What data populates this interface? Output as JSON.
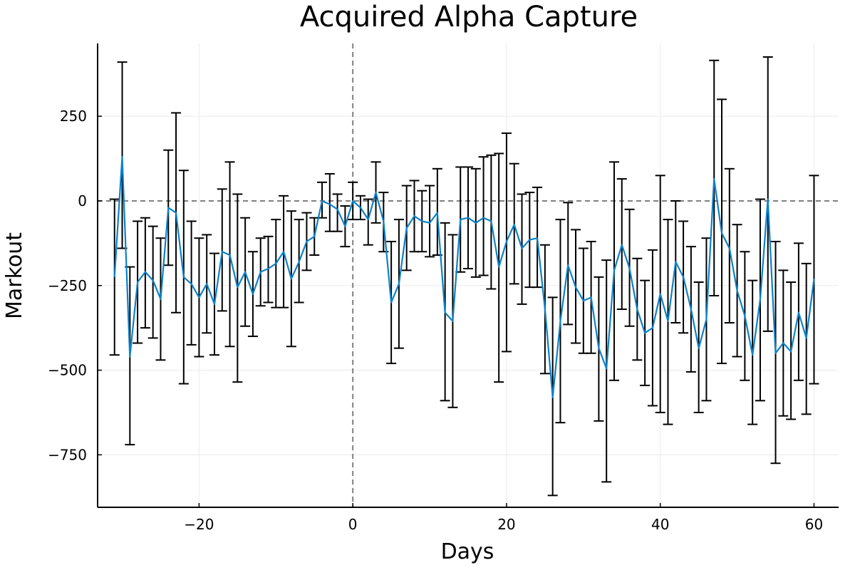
{
  "chart_data": {
    "type": "line",
    "title": "Acquired Alpha Capture",
    "xlabel": "Days",
    "ylabel": "Markout",
    "xlim": [
      -33.2,
      63.2
    ],
    "ylim": [
      -905,
      465
    ],
    "xticks": [
      -20,
      0,
      20,
      40,
      60
    ],
    "yticks": [
      250,
      0,
      -250,
      -500,
      -750
    ],
    "xtick_labels": [
      "−20",
      "0",
      "20",
      "40",
      "60"
    ],
    "ytick_labels": [
      "250",
      "0",
      "−250",
      "−500",
      "−750"
    ],
    "grid": true,
    "legend": "none",
    "reference_lines": {
      "x": 0,
      "y": 0
    },
    "colors": {
      "line": "#0c82c9",
      "errorbar": "#000000",
      "reference": "#808080",
      "grid": "#ebebeb"
    },
    "series": [
      {
        "x": [
          -31,
          -30,
          -29,
          -28,
          -27,
          -26,
          -25,
          -24,
          -23,
          -22,
          -21,
          -20,
          -19,
          -18,
          -17,
          -16,
          -15,
          -14,
          -13,
          -12,
          -11,
          -10,
          -9,
          -8,
          -7,
          -6,
          -5,
          -4,
          -3,
          -2,
          -1,
          0,
          1,
          2,
          3,
          4,
          5,
          6,
          7,
          8,
          9,
          10,
          11,
          12,
          13,
          14,
          15,
          16,
          17,
          18,
          19,
          20,
          21,
          22,
          23,
          24,
          25,
          26,
          27,
          28,
          29,
          30,
          31,
          32,
          33,
          34,
          35,
          36,
          37,
          38,
          39,
          40,
          41,
          42,
          43,
          44,
          45,
          46,
          47,
          48,
          49,
          50,
          51,
          52,
          53,
          54,
          55,
          56,
          57,
          58,
          59,
          60
        ],
        "values": [
          -225,
          130,
          -460,
          -240,
          -210,
          -235,
          -290,
          -20,
          -35,
          -225,
          -245,
          -285,
          -245,
          -305,
          -150,
          -160,
          -255,
          -210,
          -275,
          -210,
          -200,
          -185,
          -150,
          -230,
          -180,
          -120,
          -105,
          0,
          -10,
          -25,
          -75,
          0,
          -20,
          -55,
          25,
          -60,
          -300,
          -245,
          -80,
          -45,
          -60,
          -65,
          -35,
          -330,
          -355,
          -55,
          -50,
          -65,
          -50,
          -60,
          -195,
          -120,
          -70,
          -140,
          -115,
          -110,
          -320,
          -580,
          -355,
          -190,
          -255,
          -295,
          -285,
          -435,
          -495,
          -205,
          -130,
          -200,
          -320,
          -390,
          -375,
          -275,
          -355,
          -180,
          -225,
          -320,
          -435,
          -350,
          65,
          -95,
          -140,
          -265,
          -340,
          -455,
          -290,
          5,
          -450,
          -420,
          -445,
          -330,
          -405,
          -230
        ],
        "error_low": [
          -455,
          -140,
          -720,
          -420,
          -375,
          -405,
          -470,
          -190,
          -330,
          -540,
          -425,
          -460,
          -390,
          -455,
          -325,
          -430,
          -535,
          -370,
          -400,
          -310,
          -300,
          -315,
          -315,
          -430,
          -300,
          -205,
          -160,
          -50,
          -90,
          -90,
          -135,
          -55,
          -55,
          -130,
          -65,
          -150,
          -480,
          -435,
          -205,
          -150,
          -150,
          -165,
          -160,
          -590,
          -610,
          -210,
          -200,
          -225,
          -220,
          -260,
          -535,
          -445,
          -245,
          -305,
          -255,
          -255,
          -510,
          -870,
          -655,
          -365,
          -420,
          -450,
          -450,
          -650,
          -830,
          -530,
          -320,
          -370,
          -470,
          -545,
          -605,
          -625,
          -660,
          -360,
          -390,
          -505,
          -625,
          -590,
          -280,
          -480,
          -360,
          -460,
          -530,
          -660,
          -590,
          -385,
          -775,
          -635,
          -645,
          -530,
          -630,
          -540
        ],
        "error_high": [
          5,
          410,
          -195,
          -60,
          -50,
          -75,
          -110,
          150,
          260,
          90,
          -60,
          -110,
          -100,
          -155,
          35,
          115,
          20,
          -50,
          -150,
          -110,
          -105,
          -55,
          15,
          -30,
          -55,
          -35,
          -50,
          55,
          80,
          20,
          -15,
          55,
          15,
          5,
          115,
          25,
          -120,
          -55,
          45,
          60,
          30,
          45,
          95,
          -65,
          -100,
          100,
          100,
          95,
          130,
          135,
          140,
          200,
          110,
          20,
          25,
          40,
          -130,
          -285,
          -55,
          -5,
          -85,
          -140,
          -120,
          -225,
          -175,
          115,
          65,
          -25,
          -170,
          -235,
          -145,
          75,
          -55,
          0,
          -60,
          -135,
          -240,
          -110,
          415,
          300,
          95,
          -70,
          -150,
          -235,
          5,
          425,
          -120,
          -205,
          -240,
          -125,
          -185,
          75
        ]
      }
    ]
  }
}
